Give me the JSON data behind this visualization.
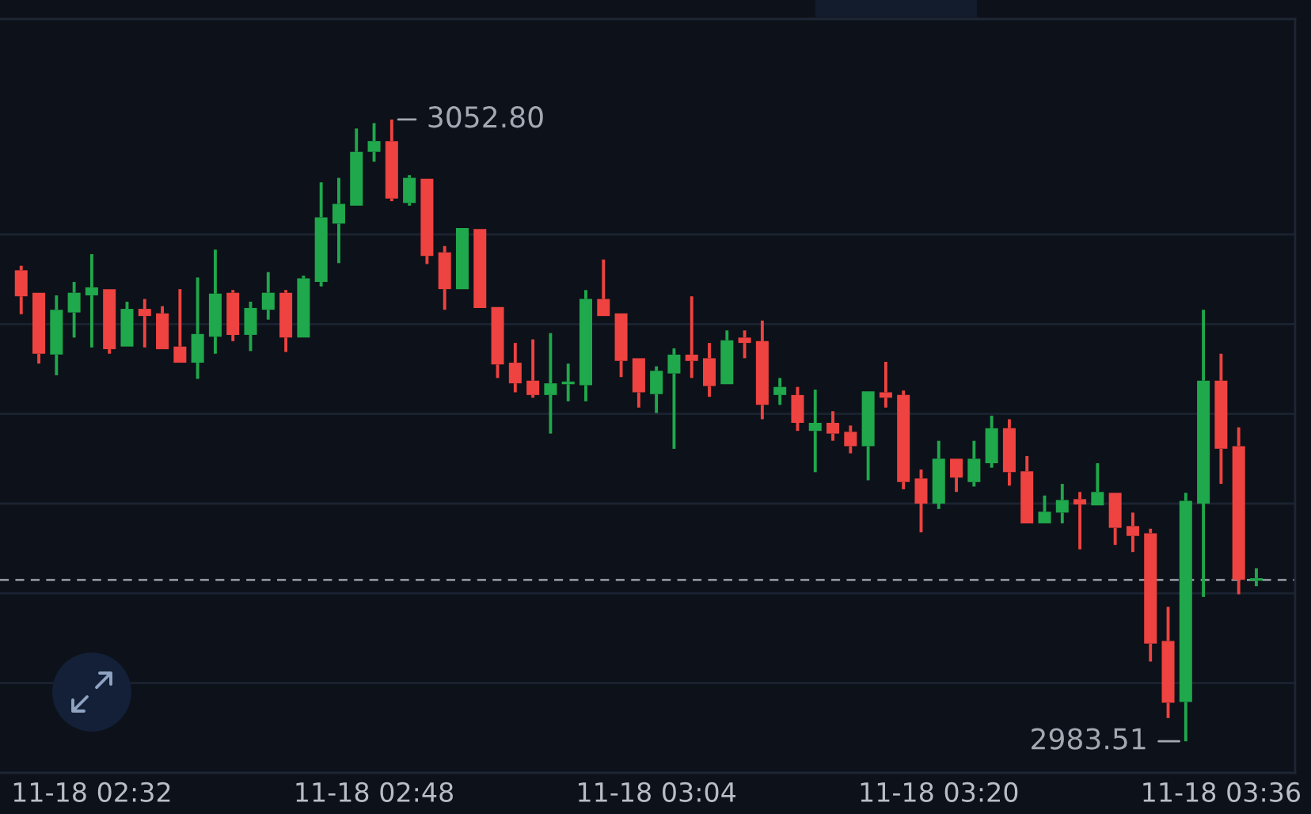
{
  "chart_data": {
    "type": "candlestick",
    "categories": [
      null,
      null,
      null,
      null,
      "11-18 02:32",
      null,
      null,
      null,
      null,
      null,
      null,
      null,
      null,
      null,
      null,
      null,
      null,
      null,
      null,
      null,
      "11-18 02:48",
      null,
      null,
      null,
      null,
      null,
      null,
      null,
      null,
      null,
      null,
      null,
      null,
      null,
      null,
      null,
      "11-18 03:04",
      null,
      null,
      null,
      null,
      null,
      null,
      null,
      null,
      null,
      null,
      null,
      null,
      null,
      null,
      null,
      "11-18 03:20",
      null,
      null,
      null,
      null,
      null,
      null,
      null,
      null,
      null,
      null,
      null,
      null,
      null,
      null,
      null,
      "11-18 03:36",
      null,
      null
    ],
    "ohlc": [
      [
        3036.0,
        3036.5,
        3031.1,
        3033.1
      ],
      [
        3033.5,
        3033.7,
        3025.6,
        3026.7
      ],
      [
        3026.6,
        3033.2,
        3024.3,
        3031.6
      ],
      [
        3031.3,
        3034.7,
        3028.5,
        3033.5
      ],
      [
        3033.2,
        3037.8,
        3027.4,
        3034.1
      ],
      [
        3033.9,
        3033.9,
        3026.7,
        3027.2
      ],
      [
        3027.5,
        3032.5,
        3027.3,
        3031.7
      ],
      [
        3031.7,
        3032.8,
        3027.4,
        3030.9
      ],
      [
        3031.2,
        3032.0,
        3027.0,
        3027.2
      ],
      [
        3027.5,
        3033.9,
        3025.7,
        3025.7
      ],
      [
        3025.7,
        3035.2,
        3023.9,
        3028.9
      ],
      [
        3028.6,
        3038.3,
        3026.7,
        3033.4
      ],
      [
        3033.5,
        3033.8,
        3028.1,
        3028.8
      ],
      [
        3028.8,
        3032.5,
        3027.0,
        3031.8
      ],
      [
        3031.6,
        3035.8,
        3030.5,
        3033.5
      ],
      [
        3033.5,
        3033.8,
        3026.9,
        3028.5
      ],
      [
        3028.5,
        3035.4,
        3028.5,
        3035.1
      ],
      [
        3034.7,
        3045.8,
        3034.2,
        3041.9
      ],
      [
        3041.2,
        3046.3,
        3036.8,
        3043.4
      ],
      [
        3043.2,
        3051.8,
        3043.0,
        3049.2
      ],
      [
        3049.2,
        3052.4,
        3048.1,
        3050.4
      ],
      [
        3050.4,
        3052.8,
        3043.7,
        3044.0
      ],
      [
        3043.5,
        3046.6,
        3043.2,
        3046.3
      ],
      [
        3046.2,
        3046.3,
        3036.7,
        3037.6
      ],
      [
        3038.0,
        3038.7,
        3031.6,
        3033.9
      ],
      [
        3033.9,
        3040.9,
        3033.9,
        3040.7
      ],
      [
        3040.6,
        3040.6,
        3031.6,
        3031.8
      ],
      [
        3031.9,
        3032.0,
        3024.0,
        3025.5
      ],
      [
        3025.7,
        3027.9,
        3022.4,
        3023.4
      ],
      [
        3023.7,
        3028.3,
        3021.8,
        3022.1
      ],
      [
        3022.1,
        3029.0,
        3017.8,
        3023.4
      ],
      [
        3023.3,
        3025.6,
        3021.4,
        3023.6
      ],
      [
        3023.2,
        3033.8,
        3021.4,
        3032.8
      ],
      [
        3032.8,
        3037.2,
        3030.8,
        3030.9
      ],
      [
        3031.2,
        3031.3,
        3024.1,
        3025.9
      ],
      [
        3026.2,
        3026.2,
        3020.7,
        3022.4
      ],
      [
        3022.2,
        3025.3,
        3020.1,
        3024.8
      ],
      [
        3024.5,
        3027.3,
        3016.1,
        3026.6
      ],
      [
        3026.6,
        3033.1,
        3024.0,
        3025.9
      ],
      [
        3026.2,
        3027.9,
        3021.9,
        3023.1
      ],
      [
        3023.3,
        3029.3,
        3023.3,
        3028.2
      ],
      [
        3028.5,
        3029.3,
        3026.2,
        3027.9
      ],
      [
        3028.1,
        3030.4,
        3019.4,
        3021.0
      ],
      [
        3022.1,
        3024.0,
        3021.0,
        3023.0
      ],
      [
        3022.1,
        3023.0,
        3018.1,
        3019.0
      ],
      [
        3018.1,
        3022.7,
        3013.5,
        3019.0
      ],
      [
        3019.0,
        3020.3,
        3017.0,
        3017.8
      ],
      [
        3018.0,
        3018.7,
        3015.6,
        3016.4
      ],
      [
        3016.4,
        3022.7,
        3012.6,
        3022.5
      ],
      [
        3022.4,
        3025.8,
        3020.7,
        3021.8
      ],
      [
        3022.1,
        3022.6,
        3011.6,
        3012.4
      ],
      [
        3012.8,
        3013.8,
        3006.8,
        3010.0
      ],
      [
        3010.0,
        3017.0,
        3009.4,
        3015.0
      ],
      [
        3015.0,
        3015.2,
        3011.3,
        3012.9
      ],
      [
        3012.4,
        3017.0,
        3011.9,
        3015.0
      ],
      [
        3014.5,
        3019.8,
        3014.0,
        3018.4
      ],
      [
        3018.4,
        3019.4,
        3012.0,
        3013.5
      ],
      [
        3013.6,
        3015.3,
        3007.8,
        3007.8
      ],
      [
        3007.8,
        3010.9,
        3007.7,
        3009.1
      ],
      [
        3009.0,
        3012.2,
        3007.8,
        3010.4
      ],
      [
        3010.5,
        3011.3,
        3004.9,
        3009.9
      ],
      [
        3009.8,
        3014.5,
        3009.8,
        3011.3
      ],
      [
        3011.2,
        3011.3,
        3005.4,
        3007.3
      ],
      [
        3007.5,
        3009.0,
        3004.6,
        3006.4
      ],
      [
        3006.7,
        3007.2,
        2992.4,
        2994.4
      ],
      [
        2994.7,
        2998.5,
        2986.1,
        2987.8
      ],
      [
        2987.9,
        3011.2,
        2983.51,
        3010.3
      ],
      [
        3010.0,
        3031.6,
        2999.6,
        3023.7
      ],
      [
        3023.7,
        3026.7,
        3012.2,
        3016.1
      ],
      [
        3016.4,
        3018.5,
        2999.9,
        3001.5
      ],
      [
        3001.5,
        3002.8,
        3000.8,
        3001.6
      ]
    ],
    "colors": [
      "#ee4340",
      "#ee4340",
      "#20a84c",
      "#20a84c",
      "#20a84c",
      "#ee4340",
      "#20a84c",
      "#ee4340",
      "#ee4340",
      "#ee4340",
      "#20a84c",
      "#20a84c",
      "#ee4340",
      "#20a84c",
      "#20a84c",
      "#ee4340",
      "#20a84c",
      "#20a84c",
      "#20a84c",
      "#20a84c",
      "#20a84c",
      "#ee4340",
      "#20a84c",
      "#ee4340",
      "#ee4340",
      "#20a84c",
      "#ee4340",
      "#ee4340",
      "#ee4340",
      "#ee4340",
      "#20a84c",
      "#20a84c",
      "#20a84c",
      "#ee4340",
      "#ee4340",
      "#ee4340",
      "#20a84c",
      "#20a84c",
      "#ee4340",
      "#ee4340",
      "#20a84c",
      "#ee4340",
      "#ee4340",
      "#20a84c",
      "#ee4340",
      "#20a84c",
      "#ee4340",
      "#ee4340",
      "#20a84c",
      "#ee4340",
      "#ee4340",
      "#ee4340",
      "#20a84c",
      "#ee4340",
      "#20a84c",
      "#20a84c",
      "#ee4340",
      "#ee4340",
      "#20a84c",
      "#20a84c",
      "#ee4340",
      "#20a84c",
      "#ee4340",
      "#ee4340",
      "#ee4340",
      "#ee4340",
      "#20a84c",
      "#20a84c",
      "#ee4340",
      "#ee4340",
      "#20a84c"
    ],
    "ylim": [
      2980,
      3064
    ],
    "yticks": [
      {
        "value": 2990,
        "label": null
      },
      {
        "value": 3000,
        "label": null
      },
      {
        "value": 3010,
        "label": null
      },
      {
        "value": 3020,
        "label": null
      },
      {
        "value": 3030,
        "label": null
      },
      {
        "value": 3040,
        "label": null
      }
    ],
    "grid": "y",
    "tick_labels": "x",
    "ref_lines": [
      {
        "axis": "y",
        "value": 3001.5,
        "color": "#8d929b",
        "line_style": "dashed"
      }
    ],
    "annotations": [
      "3052.80",
      "2983.51"
    ]
  }
}
